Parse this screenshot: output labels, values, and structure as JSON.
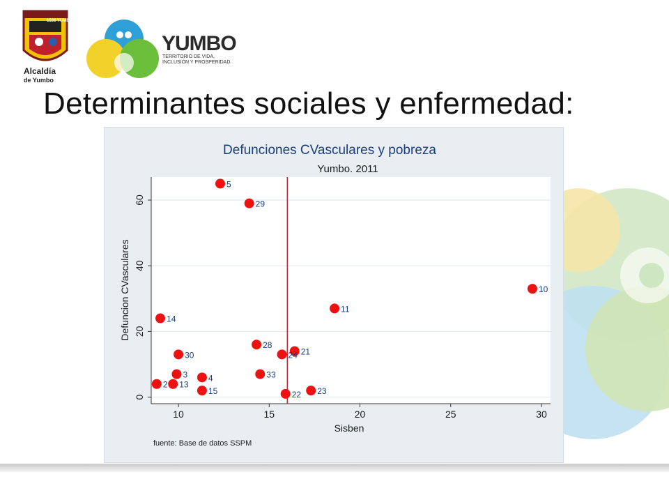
{
  "header": {
    "crest_top_text": "1536 YUMBO 1864",
    "crest_caption_line1": "Alcaldía",
    "crest_caption_line2": "de Yumbo",
    "brand_word": "YUMBO",
    "brand_tagline_line1": "TERRITORIO DE VIDA,",
    "brand_tagline_line2": "INCLUSIÓN Y PROSPERIDAD"
  },
  "slide": {
    "title": "Determinantes sociales y enfermedad:"
  },
  "colors": {
    "point": "#ee1111",
    "refline": "#b5303a",
    "title_blue": "#1a3d7c",
    "panel_bg": "#e8eef2",
    "plot_bg": "#ffffff",
    "grid": "#dfe6ea"
  },
  "chart_data": {
    "type": "scatter",
    "title": "Defunciones CVasculares y pobreza",
    "subtitle": "Yumbo. 2011",
    "xlabel": "Sisben",
    "ylabel": "Defuncion CVasculares",
    "note": "fuente: Base de datos SSPM",
    "xlim": [
      8.5,
      30.5
    ],
    "ylim": [
      -2,
      67
    ],
    "xticks": [
      10,
      15,
      20,
      25,
      30
    ],
    "yticks": [
      0,
      20,
      40,
      60
    ],
    "grid": true,
    "reference_line_x": 16,
    "points": [
      {
        "x": 12.3,
        "y": 65,
        "label": "5"
      },
      {
        "x": 13.9,
        "y": 59,
        "label": "29"
      },
      {
        "x": 29.5,
        "y": 33,
        "label": "10"
      },
      {
        "x": 18.6,
        "y": 27,
        "label": "11"
      },
      {
        "x": 9.0,
        "y": 24,
        "label": "14"
      },
      {
        "x": 14.3,
        "y": 16,
        "label": "28"
      },
      {
        "x": 16.4,
        "y": 14,
        "label": "21"
      },
      {
        "x": 15.7,
        "y": 13,
        "label": "24"
      },
      {
        "x": 10.0,
        "y": 13,
        "label": "30"
      },
      {
        "x": 9.9,
        "y": 7,
        "label": "3"
      },
      {
        "x": 14.5,
        "y": 7,
        "label": "33"
      },
      {
        "x": 11.3,
        "y": 6,
        "label": "4"
      },
      {
        "x": 8.8,
        "y": 4,
        "label": "2"
      },
      {
        "x": 9.7,
        "y": 4,
        "label": "13"
      },
      {
        "x": 11.3,
        "y": 2,
        "label": "15"
      },
      {
        "x": 17.3,
        "y": 2,
        "label": "23"
      },
      {
        "x": 15.9,
        "y": 1,
        "label": "22"
      }
    ]
  }
}
